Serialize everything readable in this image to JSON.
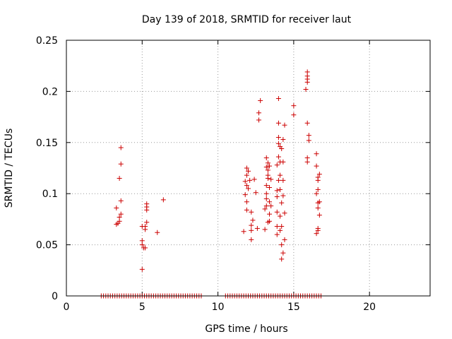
{
  "chart_data": {
    "type": "scatter",
    "title": "Day 139 of 2018, SRMTID for receiver laut",
    "xlabel": "GPS time / hours",
    "ylabel": "SRMTID / TECUs",
    "xlim": [
      0,
      24
    ],
    "ylim": [
      0,
      0.25
    ],
    "xticks": [
      0,
      5,
      10,
      15,
      20
    ],
    "yticks": [
      0,
      0.05,
      0.1,
      0.15,
      0.2,
      0.25
    ],
    "ytick_labels": [
      "0",
      "0.05",
      "0.1",
      "0.15",
      "0.2",
      "0.25"
    ],
    "grid": true,
    "marker": "+",
    "colors": {
      "series": "#cc0000",
      "grid": "#999999",
      "axis": "#000000"
    },
    "series": [
      {
        "name": "SRMTID",
        "points": [
          [
            3.3,
            0.086
          ],
          [
            3.3,
            0.07
          ],
          [
            3.4,
            0.071
          ],
          [
            3.5,
            0.073
          ],
          [
            3.5,
            0.077
          ],
          [
            3.6,
            0.08
          ],
          [
            3.5,
            0.115
          ],
          [
            3.6,
            0.129
          ],
          [
            3.6,
            0.145
          ],
          [
            3.6,
            0.093
          ],
          [
            5.0,
            0.068
          ],
          [
            5.0,
            0.054
          ],
          [
            5.0,
            0.05
          ],
          [
            5.1,
            0.047
          ],
          [
            5.2,
            0.047
          ],
          [
            5.2,
            0.065
          ],
          [
            5.2,
            0.068
          ],
          [
            5.3,
            0.072
          ],
          [
            5.3,
            0.084
          ],
          [
            5.3,
            0.087
          ],
          [
            5.3,
            0.09
          ],
          [
            5.0,
            0.026
          ],
          [
            6.0,
            0.062
          ],
          [
            6.4,
            0.094
          ],
          [
            11.7,
            0.063
          ],
          [
            11.8,
            0.099
          ],
          [
            11.8,
            0.112
          ],
          [
            11.9,
            0.108
          ],
          [
            11.9,
            0.118
          ],
          [
            11.9,
            0.125
          ],
          [
            12.0,
            0.122
          ],
          [
            12.0,
            0.105
          ],
          [
            11.9,
            0.092
          ],
          [
            11.9,
            0.084
          ],
          [
            12.1,
            0.113
          ],
          [
            12.2,
            0.069
          ],
          [
            12.2,
            0.055
          ],
          [
            12.2,
            0.064
          ],
          [
            12.2,
            0.082
          ],
          [
            12.3,
            0.074
          ],
          [
            12.4,
            0.114
          ],
          [
            12.5,
            0.101
          ],
          [
            12.6,
            0.066
          ],
          [
            12.7,
            0.172
          ],
          [
            12.7,
            0.179
          ],
          [
            12.8,
            0.191
          ],
          [
            13.1,
            0.065
          ],
          [
            13.1,
            0.085
          ],
          [
            13.2,
            0.088
          ],
          [
            13.2,
            0.095
          ],
          [
            13.2,
            0.1
          ],
          [
            13.2,
            0.108
          ],
          [
            13.3,
            0.115
          ],
          [
            13.2,
            0.126
          ],
          [
            13.3,
            0.13
          ],
          [
            13.2,
            0.135
          ],
          [
            13.3,
            0.123
          ],
          [
            13.3,
            0.072
          ],
          [
            13.4,
            0.08
          ],
          [
            13.4,
            0.092
          ],
          [
            13.4,
            0.106
          ],
          [
            13.3,
            0.118
          ],
          [
            13.4,
            0.127
          ],
          [
            13.5,
            0.114
          ],
          [
            13.5,
            0.088
          ],
          [
            13.4,
            0.073
          ],
          [
            13.9,
            0.06
          ],
          [
            13.9,
            0.068
          ],
          [
            13.9,
            0.082
          ],
          [
            13.9,
            0.097
          ],
          [
            13.9,
            0.103
          ],
          [
            14.0,
            0.113
          ],
          [
            13.9,
            0.128
          ],
          [
            14.0,
            0.136
          ],
          [
            14.0,
            0.149
          ],
          [
            14.0,
            0.155
          ],
          [
            14.0,
            0.193
          ],
          [
            14.0,
            0.169
          ],
          [
            14.1,
            0.146
          ],
          [
            14.1,
            0.131
          ],
          [
            14.1,
            0.118
          ],
          [
            14.1,
            0.104
          ],
          [
            14.2,
            0.091
          ],
          [
            14.1,
            0.078
          ],
          [
            14.1,
            0.064
          ],
          [
            14.2,
            0.05
          ],
          [
            14.2,
            0.036
          ],
          [
            14.2,
            0.144
          ],
          [
            14.3,
            0.131
          ],
          [
            14.3,
            0.153
          ],
          [
            14.3,
            0.113
          ],
          [
            14.3,
            0.098
          ],
          [
            14.4,
            0.167
          ],
          [
            14.4,
            0.081
          ],
          [
            14.4,
            0.055
          ],
          [
            14.3,
            0.042
          ],
          [
            14.2,
            0.068
          ],
          [
            15.0,
            0.186
          ],
          [
            15.0,
            0.177
          ],
          [
            15.9,
            0.209
          ],
          [
            15.8,
            0.202
          ],
          [
            15.9,
            0.215
          ],
          [
            15.9,
            0.219
          ],
          [
            15.9,
            0.212
          ],
          [
            15.9,
            0.169
          ],
          [
            16.0,
            0.157
          ],
          [
            16.0,
            0.152
          ],
          [
            15.9,
            0.135
          ],
          [
            15.9,
            0.131
          ],
          [
            16.5,
            0.139
          ],
          [
            16.5,
            0.127
          ],
          [
            16.6,
            0.116
          ],
          [
            16.6,
            0.113
          ],
          [
            16.5,
            0.1
          ],
          [
            16.6,
            0.091
          ],
          [
            16.6,
            0.086
          ],
          [
            16.7,
            0.079
          ],
          [
            16.6,
            0.064
          ],
          [
            16.5,
            0.061
          ],
          [
            16.6,
            0.066
          ],
          [
            16.6,
            0.104
          ],
          [
            16.7,
            0.092
          ],
          [
            16.7,
            0.119
          ]
        ],
        "zero_runs": [
          [
            2.3,
            8.9
          ],
          [
            10.5,
            16.8
          ]
        ],
        "zero_step": 0.15
      }
    ]
  }
}
